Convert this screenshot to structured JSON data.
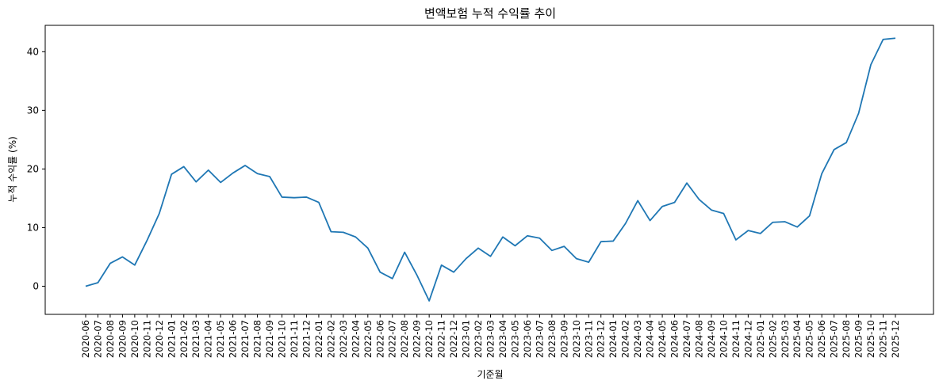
{
  "chart_data": {
    "type": "line",
    "title": "변액보험 누적 수익률 추이",
    "xlabel": "기준월",
    "ylabel": "누적 수익률 (%)",
    "ylim": [
      -4.8,
      44.5
    ],
    "yticks": [
      0,
      10,
      20,
      30,
      40
    ],
    "grid": false,
    "line_color": "#1f77b4",
    "categories": [
      "2020-06",
      "2020-07",
      "2020-08",
      "2020-09",
      "2020-10",
      "2020-11",
      "2020-12",
      "2021-01",
      "2021-02",
      "2021-03",
      "2021-04",
      "2021-05",
      "2021-06",
      "2021-07",
      "2021-08",
      "2021-09",
      "2021-10",
      "2021-11",
      "2021-12",
      "2022-01",
      "2022-02",
      "2022-03",
      "2022-04",
      "2022-05",
      "2022-06",
      "2022-07",
      "2022-08",
      "2022-09",
      "2022-10",
      "2022-11",
      "2022-12",
      "2023-01",
      "2023-02",
      "2023-03",
      "2023-04",
      "2023-05",
      "2023-06",
      "2023-07",
      "2023-08",
      "2023-09",
      "2023-10",
      "2023-11",
      "2023-12",
      "2024-01",
      "2024-02",
      "2024-03",
      "2024-04",
      "2024-05",
      "2024-06",
      "2024-07",
      "2024-08",
      "2024-09",
      "2024-10",
      "2024-11",
      "2024-12",
      "2025-01",
      "2025-02",
      "2025-03",
      "2025-04",
      "2025-05",
      "2025-06",
      "2025-07",
      "2025-08",
      "2025-09",
      "2025-10",
      "2025-11",
      "2025-12"
    ],
    "series": [
      {
        "values": [
          0.0,
          0.6,
          3.9,
          5.0,
          3.6,
          7.8,
          12.4,
          19.1,
          20.4,
          17.8,
          19.8,
          17.7,
          19.3,
          20.6,
          19.2,
          18.7,
          15.2,
          15.1,
          15.2,
          14.3,
          9.3,
          9.2,
          8.4,
          6.5,
          2.4,
          1.3,
          5.8,
          1.9,
          -2.5,
          3.6,
          2.4,
          4.7,
          6.5,
          5.1,
          8.4,
          6.9,
          8.6,
          8.2,
          6.1,
          6.8,
          4.7,
          4.1,
          7.6,
          7.7,
          10.7,
          14.6,
          11.2,
          13.6,
          14.3,
          17.6,
          14.8,
          13.0,
          12.4,
          7.9,
          9.5,
          9.0,
          10.9,
          11.0,
          10.1,
          12.0,
          19.2,
          23.3,
          24.5,
          29.5,
          37.8,
          42.1,
          42.3
        ]
      }
    ]
  }
}
